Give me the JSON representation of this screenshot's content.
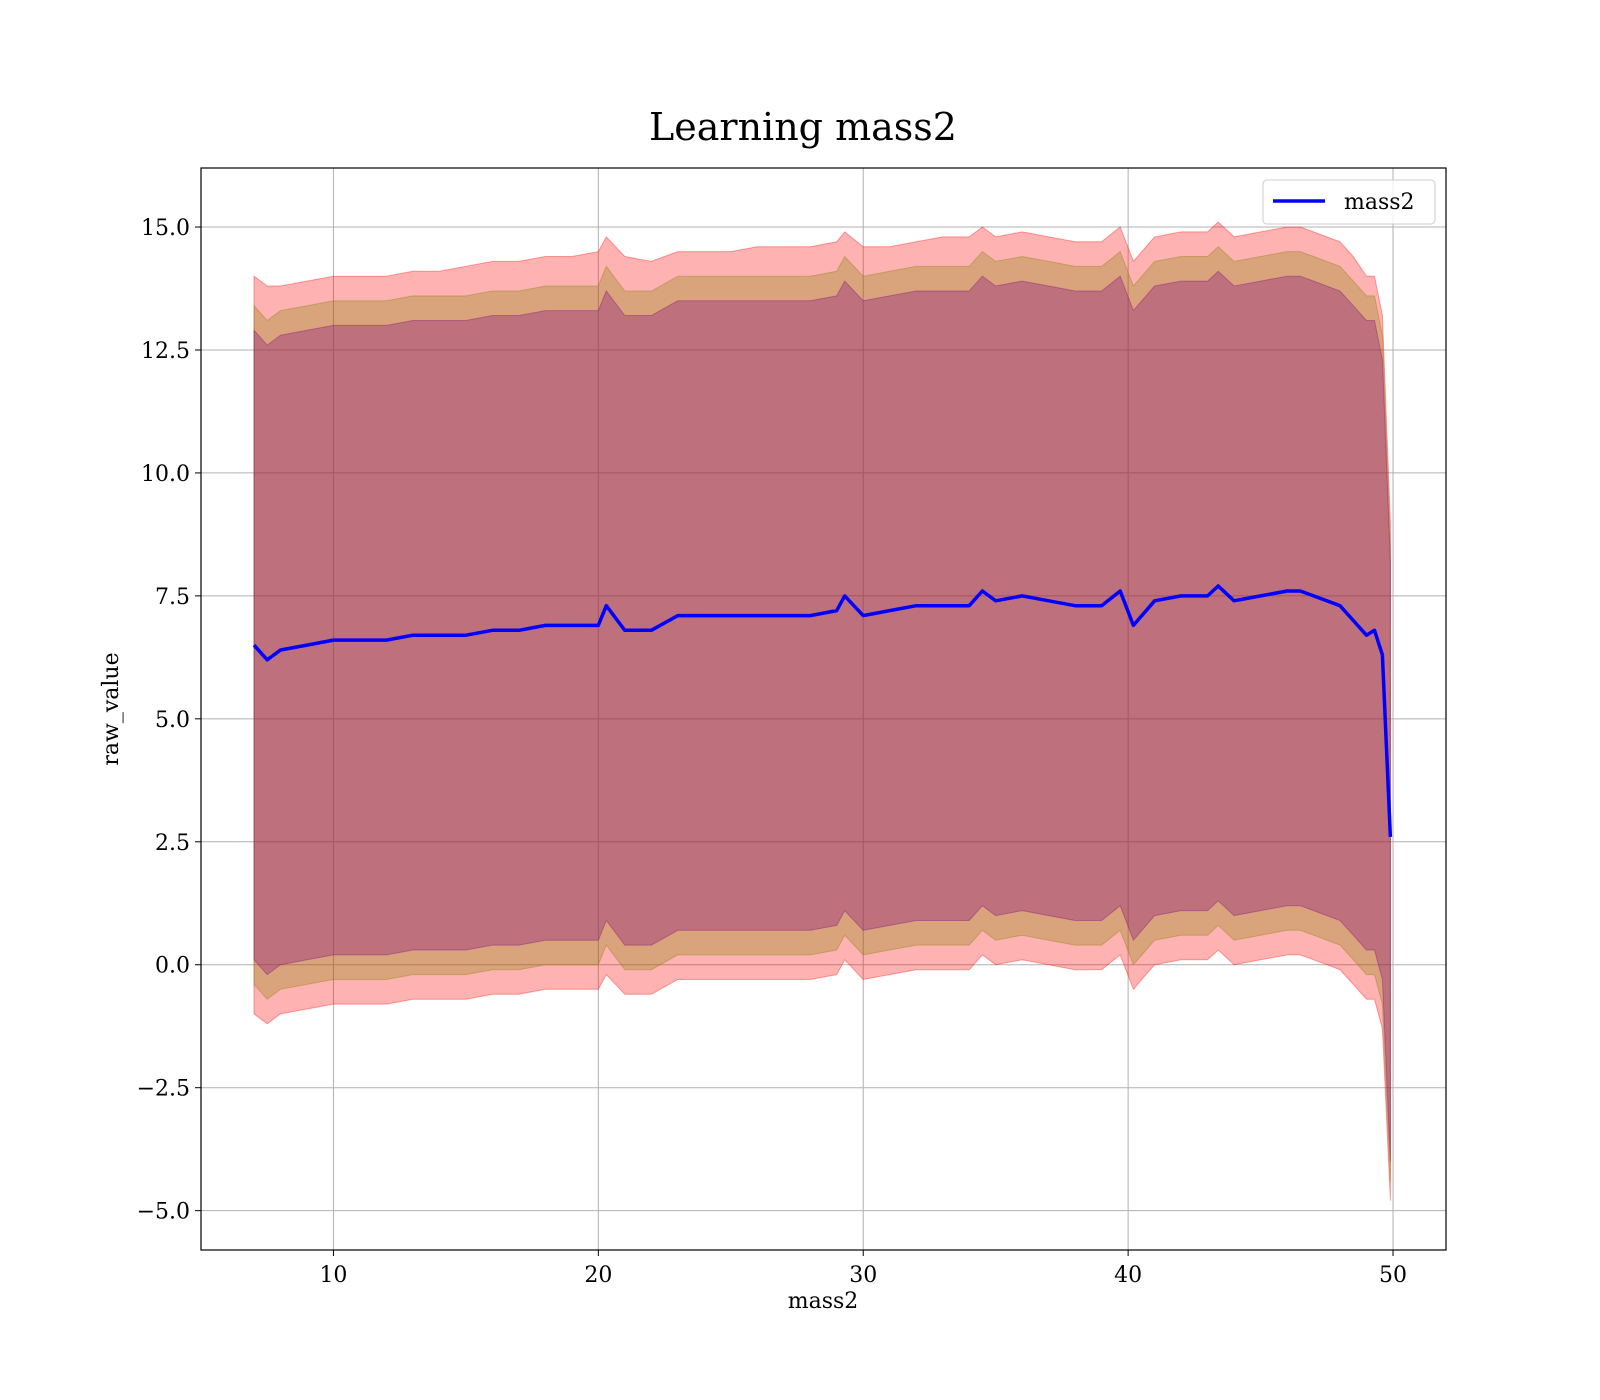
{
  "chart_data": {
    "type": "line",
    "title": "Learning mass2",
    "xlabel": "mass2",
    "ylabel": "raw_value",
    "xlim": [
      5,
      52
    ],
    "ylim": [
      -5.8,
      16.2
    ],
    "xticks": [
      10,
      20,
      30,
      40,
      50
    ],
    "yticks": [
      -5.0,
      -2.5,
      0.0,
      2.5,
      5.0,
      7.5,
      10.0,
      12.5,
      15.0
    ],
    "xtick_labels": [
      "10",
      "20",
      "30",
      "40",
      "50"
    ],
    "ytick_labels": [
      "−5.0",
      "−2.5",
      "0.0",
      "2.5",
      "5.0",
      "7.5",
      "10.0",
      "12.5",
      "15.0"
    ],
    "grid": true,
    "legend": {
      "position": "top-right",
      "entries": [
        "mass2"
      ]
    },
    "series": [
      {
        "name": "mass2",
        "color": "#0000ff",
        "x": [
          7.0,
          7.5,
          8.0,
          9.0,
          10.0,
          11.0,
          12.0,
          13.0,
          14.0,
          15.0,
          16.0,
          17.0,
          18.0,
          19.0,
          20.0,
          20.3,
          21.0,
          22.0,
          23.0,
          24.0,
          25.0,
          26.0,
          27.0,
          28.0,
          29.0,
          29.3,
          30.0,
          31.0,
          32.0,
          33.0,
          34.0,
          34.5,
          35.0,
          36.0,
          37.0,
          38.0,
          39.0,
          39.7,
          40.2,
          41.0,
          42.0,
          43.0,
          43.4,
          44.0,
          45.0,
          46.0,
          46.5,
          47.0,
          48.0,
          48.5,
          49.0,
          49.3,
          49.6,
          49.9
        ],
        "y": [
          6.5,
          6.2,
          6.4,
          6.5,
          6.6,
          6.6,
          6.6,
          6.7,
          6.7,
          6.7,
          6.8,
          6.8,
          6.9,
          6.9,
          6.9,
          7.3,
          6.8,
          6.8,
          7.1,
          7.1,
          7.1,
          7.1,
          7.1,
          7.1,
          7.2,
          7.5,
          7.1,
          7.2,
          7.3,
          7.3,
          7.3,
          7.6,
          7.4,
          7.5,
          7.4,
          7.3,
          7.3,
          7.6,
          6.9,
          7.4,
          7.5,
          7.5,
          7.7,
          7.4,
          7.5,
          7.6,
          7.6,
          7.5,
          7.3,
          7.0,
          6.7,
          6.8,
          6.3,
          2.6
        ]
      }
    ],
    "bands": [
      {
        "color": "#ff0000",
        "opacity": 0.3,
        "x": [
          7.0,
          7.5,
          8.0,
          9.0,
          10.0,
          11.0,
          12.0,
          13.0,
          14.0,
          15.0,
          16.0,
          17.0,
          18.0,
          19.0,
          20.0,
          20.3,
          21.0,
          22.0,
          23.0,
          24.0,
          25.0,
          26.0,
          27.0,
          28.0,
          29.0,
          29.3,
          30.0,
          31.0,
          32.0,
          33.0,
          34.0,
          34.5,
          35.0,
          36.0,
          37.0,
          38.0,
          39.0,
          39.7,
          40.2,
          41.0,
          42.0,
          43.0,
          43.4,
          44.0,
          45.0,
          46.0,
          46.5,
          47.0,
          48.0,
          48.5,
          49.0,
          49.3,
          49.6,
          49.9
        ],
        "upper": [
          14.0,
          13.8,
          13.8,
          13.9,
          14.0,
          14.0,
          14.0,
          14.1,
          14.1,
          14.2,
          14.3,
          14.3,
          14.4,
          14.4,
          14.5,
          14.8,
          14.4,
          14.3,
          14.5,
          14.5,
          14.5,
          14.6,
          14.6,
          14.6,
          14.7,
          14.9,
          14.6,
          14.6,
          14.7,
          14.8,
          14.8,
          15.0,
          14.8,
          14.9,
          14.8,
          14.7,
          14.7,
          15.0,
          14.3,
          14.8,
          14.9,
          14.9,
          15.1,
          14.8,
          14.9,
          15.0,
          15.0,
          14.9,
          14.7,
          14.4,
          14.0,
          14.0,
          13.2,
          9.0
        ],
        "lower": [
          -1.0,
          -1.2,
          -1.0,
          -0.9,
          -0.8,
          -0.8,
          -0.8,
          -0.7,
          -0.7,
          -0.7,
          -0.6,
          -0.6,
          -0.5,
          -0.5,
          -0.5,
          -0.2,
          -0.6,
          -0.6,
          -0.3,
          -0.3,
          -0.3,
          -0.3,
          -0.3,
          -0.3,
          -0.2,
          0.1,
          -0.3,
          -0.2,
          -0.1,
          -0.1,
          -0.1,
          0.2,
          0.0,
          0.1,
          0.0,
          -0.1,
          -0.1,
          0.2,
          -0.5,
          0.0,
          0.1,
          0.1,
          0.3,
          0.0,
          0.1,
          0.2,
          0.2,
          0.1,
          -0.1,
          -0.4,
          -0.7,
          -0.7,
          -1.3,
          -4.8
        ]
      },
      {
        "color": "#808000",
        "opacity": 0.3,
        "x": [
          7.0,
          7.5,
          8.0,
          9.0,
          10.0,
          11.0,
          12.0,
          13.0,
          14.0,
          15.0,
          16.0,
          17.0,
          18.0,
          19.0,
          20.0,
          20.3,
          21.0,
          22.0,
          23.0,
          24.0,
          25.0,
          26.0,
          27.0,
          28.0,
          29.0,
          29.3,
          30.0,
          31.0,
          32.0,
          33.0,
          34.0,
          34.5,
          35.0,
          36.0,
          37.0,
          38.0,
          39.0,
          39.7,
          40.2,
          41.0,
          42.0,
          43.0,
          43.4,
          44.0,
          45.0,
          46.0,
          46.5,
          47.0,
          48.0,
          48.5,
          49.0,
          49.3,
          49.6,
          49.9
        ],
        "upper": [
          13.4,
          13.1,
          13.3,
          13.4,
          13.5,
          13.5,
          13.5,
          13.6,
          13.6,
          13.6,
          13.7,
          13.7,
          13.8,
          13.8,
          13.8,
          14.2,
          13.7,
          13.7,
          14.0,
          14.0,
          14.0,
          14.0,
          14.0,
          14.0,
          14.1,
          14.4,
          14.0,
          14.1,
          14.2,
          14.2,
          14.2,
          14.5,
          14.3,
          14.4,
          14.3,
          14.2,
          14.2,
          14.5,
          13.8,
          14.3,
          14.4,
          14.4,
          14.6,
          14.3,
          14.4,
          14.5,
          14.5,
          14.4,
          14.2,
          13.9,
          13.6,
          13.6,
          12.8,
          8.5
        ],
        "lower": [
          -0.4,
          -0.7,
          -0.5,
          -0.4,
          -0.3,
          -0.3,
          -0.3,
          -0.2,
          -0.2,
          -0.2,
          -0.1,
          -0.1,
          0.0,
          0.0,
          0.0,
          0.4,
          -0.1,
          -0.1,
          0.2,
          0.2,
          0.2,
          0.2,
          0.2,
          0.2,
          0.3,
          0.6,
          0.2,
          0.3,
          0.4,
          0.4,
          0.4,
          0.7,
          0.5,
          0.6,
          0.5,
          0.4,
          0.4,
          0.7,
          0.0,
          0.5,
          0.6,
          0.6,
          0.8,
          0.5,
          0.6,
          0.7,
          0.7,
          0.6,
          0.4,
          0.1,
          -0.2,
          -0.2,
          -0.8,
          -4.4
        ]
      },
      {
        "color": "#800080",
        "opacity": 0.3,
        "x": [
          7.0,
          7.5,
          8.0,
          9.0,
          10.0,
          11.0,
          12.0,
          13.0,
          14.0,
          15.0,
          16.0,
          17.0,
          18.0,
          19.0,
          20.0,
          20.3,
          21.0,
          22.0,
          23.0,
          24.0,
          25.0,
          26.0,
          27.0,
          28.0,
          29.0,
          29.3,
          30.0,
          31.0,
          32.0,
          33.0,
          34.0,
          34.5,
          35.0,
          36.0,
          37.0,
          38.0,
          39.0,
          39.7,
          40.2,
          41.0,
          42.0,
          43.0,
          43.4,
          44.0,
          45.0,
          46.0,
          46.5,
          47.0,
          48.0,
          48.5,
          49.0,
          49.3,
          49.6,
          49.9
        ],
        "upper": [
          12.9,
          12.6,
          12.8,
          12.9,
          13.0,
          13.0,
          13.0,
          13.1,
          13.1,
          13.1,
          13.2,
          13.2,
          13.3,
          13.3,
          13.3,
          13.7,
          13.2,
          13.2,
          13.5,
          13.5,
          13.5,
          13.5,
          13.5,
          13.5,
          13.6,
          13.9,
          13.5,
          13.6,
          13.7,
          13.7,
          13.7,
          14.0,
          13.8,
          13.9,
          13.8,
          13.7,
          13.7,
          14.0,
          13.3,
          13.8,
          13.9,
          13.9,
          14.1,
          13.8,
          13.9,
          14.0,
          14.0,
          13.9,
          13.7,
          13.4,
          13.1,
          13.1,
          12.3,
          8.2
        ],
        "lower": [
          0.1,
          -0.2,
          0.0,
          0.1,
          0.2,
          0.2,
          0.2,
          0.3,
          0.3,
          0.3,
          0.4,
          0.4,
          0.5,
          0.5,
          0.5,
          0.9,
          0.4,
          0.4,
          0.7,
          0.7,
          0.7,
          0.7,
          0.7,
          0.7,
          0.8,
          1.1,
          0.7,
          0.8,
          0.9,
          0.9,
          0.9,
          1.2,
          1.0,
          1.1,
          1.0,
          0.9,
          0.9,
          1.2,
          0.5,
          1.0,
          1.1,
          1.1,
          1.3,
          1.0,
          1.1,
          1.2,
          1.2,
          1.1,
          0.9,
          0.6,
          0.3,
          0.3,
          -0.3,
          -4.0
        ]
      }
    ]
  }
}
